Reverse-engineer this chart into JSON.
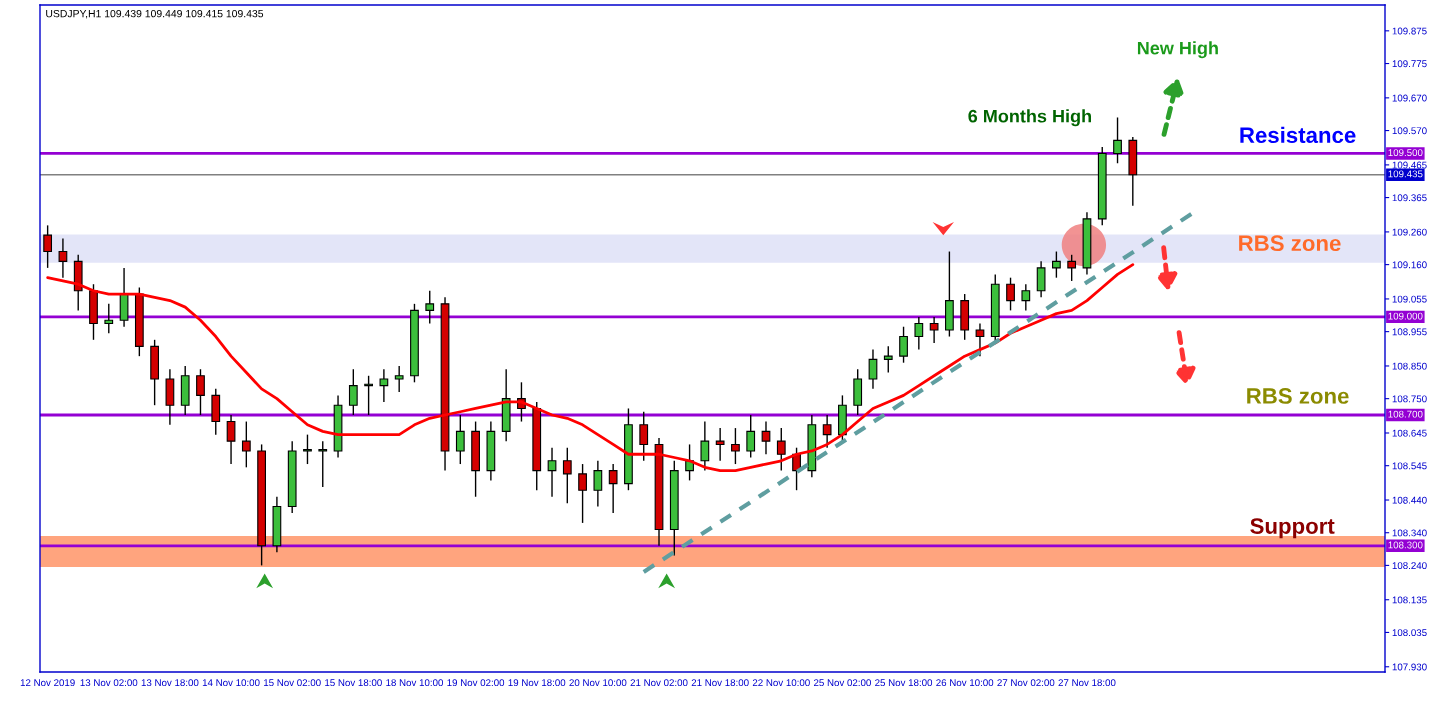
{
  "chart_data": {
    "type": "candlestick",
    "title": "USDJPY,H1 109.439 109.449 109.415 109.435",
    "categories": [
      "12 Nov 2019",
      null,
      null,
      null,
      "13 Nov 02:00",
      null,
      null,
      null,
      "13 Nov 18:00",
      null,
      null,
      null,
      "14 Nov 10:00",
      null,
      null,
      null,
      "15 Nov 02:00",
      null,
      null,
      null,
      "15 Nov 18:00",
      null,
      null,
      null,
      "18 Nov 10:00",
      null,
      null,
      null,
      "19 Nov 02:00",
      null,
      null,
      null,
      "19 Nov 18:00",
      null,
      null,
      null,
      "20 Nov 10:00",
      null,
      null,
      null,
      "21 Nov 02:00",
      null,
      null,
      null,
      "21 Nov 18:00",
      null,
      null,
      null,
      "22 Nov 10:00",
      null,
      null,
      null,
      "25 Nov 02:00",
      null,
      null,
      null,
      "25 Nov 18:00",
      null,
      null,
      null,
      "26 Nov 10:00",
      null,
      null,
      null,
      "27 Nov 02:00",
      null,
      null,
      null,
      "27 Nov 18:00",
      null,
      null,
      null,
      null,
      null,
      null,
      null,
      null,
      null,
      null,
      null,
      null,
      null,
      null,
      null,
      null,
      null,
      null,
      null
    ],
    "ohlc": [
      [
        109.25,
        109.28,
        109.15,
        109.2
      ],
      [
        109.2,
        109.24,
        109.12,
        109.17
      ],
      [
        109.17,
        109.19,
        109.02,
        109.08
      ],
      [
        109.08,
        109.1,
        108.93,
        108.98
      ],
      [
        108.98,
        109.04,
        108.95,
        108.99
      ],
      [
        108.99,
        109.15,
        108.97,
        109.07
      ],
      [
        109.07,
        109.09,
        108.88,
        108.91
      ],
      [
        108.91,
        108.93,
        108.73,
        108.81
      ],
      [
        108.81,
        108.84,
        108.67,
        108.73
      ],
      [
        108.73,
        108.85,
        108.7,
        108.82
      ],
      [
        108.82,
        108.84,
        108.7,
        108.76
      ],
      [
        108.76,
        108.78,
        108.64,
        108.68
      ],
      [
        108.68,
        108.7,
        108.55,
        108.62
      ],
      [
        108.62,
        108.68,
        108.54,
        108.59
      ],
      [
        108.59,
        108.61,
        108.24,
        108.3
      ],
      [
        108.3,
        108.45,
        108.28,
        108.42
      ],
      [
        108.42,
        108.62,
        108.4,
        108.59
      ],
      [
        108.59,
        108.64,
        108.55,
        108.59
      ],
      [
        108.59,
        108.62,
        108.48,
        108.59
      ],
      [
        108.59,
        108.76,
        108.57,
        108.73
      ],
      [
        108.73,
        108.84,
        108.7,
        108.79
      ],
      [
        108.79,
        108.82,
        108.7,
        108.79
      ],
      [
        108.79,
        108.84,
        108.74,
        108.81
      ],
      [
        108.81,
        108.85,
        108.77,
        108.82
      ],
      [
        108.82,
        109.04,
        108.8,
        109.02
      ],
      [
        109.02,
        109.08,
        108.98,
        109.04
      ],
      [
        109.04,
        109.06,
        108.53,
        108.59
      ],
      [
        108.59,
        108.7,
        108.55,
        108.65
      ],
      [
        108.65,
        108.68,
        108.45,
        108.53
      ],
      [
        108.53,
        108.68,
        108.5,
        108.65
      ],
      [
        108.65,
        108.84,
        108.62,
        108.75
      ],
      [
        108.75,
        108.8,
        108.68,
        108.72
      ],
      [
        108.72,
        108.74,
        108.47,
        108.53
      ],
      [
        108.53,
        108.6,
        108.45,
        108.56
      ],
      [
        108.56,
        108.6,
        108.43,
        108.52
      ],
      [
        108.52,
        108.55,
        108.37,
        108.47
      ],
      [
        108.47,
        108.56,
        108.42,
        108.53
      ],
      [
        108.53,
        108.55,
        108.4,
        108.49
      ],
      [
        108.49,
        108.72,
        108.47,
        108.67
      ],
      [
        108.67,
        108.71,
        108.56,
        108.61
      ],
      [
        108.61,
        108.63,
        108.3,
        108.35
      ],
      [
        108.35,
        108.56,
        108.27,
        108.53
      ],
      [
        108.53,
        108.61,
        108.5,
        108.56
      ],
      [
        108.56,
        108.68,
        108.53,
        108.62
      ],
      [
        108.62,
        108.66,
        108.56,
        108.61
      ],
      [
        108.61,
        108.66,
        108.55,
        108.59
      ],
      [
        108.59,
        108.7,
        108.57,
        108.65
      ],
      [
        108.65,
        108.68,
        108.58,
        108.62
      ],
      [
        108.62,
        108.66,
        108.53,
        108.58
      ],
      [
        108.58,
        108.6,
        108.47,
        108.53
      ],
      [
        108.53,
        108.7,
        108.51,
        108.67
      ],
      [
        108.67,
        108.7,
        108.6,
        108.64
      ],
      [
        108.64,
        108.76,
        108.62,
        108.73
      ],
      [
        108.73,
        108.84,
        108.7,
        108.81
      ],
      [
        108.81,
        108.9,
        108.78,
        108.87
      ],
      [
        108.87,
        108.91,
        108.83,
        108.88
      ],
      [
        108.88,
        108.97,
        108.86,
        108.94
      ],
      [
        108.94,
        109.0,
        108.9,
        108.98
      ],
      [
        108.98,
        109.0,
        108.92,
        108.96
      ],
      [
        108.96,
        109.2,
        108.94,
        109.05
      ],
      [
        109.05,
        109.07,
        108.93,
        108.96
      ],
      [
        108.96,
        108.98,
        108.88,
        108.94
      ],
      [
        108.94,
        109.13,
        108.92,
        109.1
      ],
      [
        109.1,
        109.12,
        109.02,
        109.05
      ],
      [
        109.05,
        109.1,
        109.02,
        109.08
      ],
      [
        109.08,
        109.17,
        109.06,
        109.15
      ],
      [
        109.15,
        109.2,
        109.12,
        109.17
      ],
      [
        109.17,
        109.19,
        109.11,
        109.15
      ],
      [
        109.15,
        109.32,
        109.13,
        109.3
      ],
      [
        109.3,
        109.52,
        109.28,
        109.5
      ],
      [
        109.5,
        109.61,
        109.47,
        109.54
      ],
      [
        109.54,
        109.55,
        109.34,
        109.435
      ],
      null,
      null,
      null,
      null,
      null,
      null,
      null,
      null,
      null,
      null,
      null,
      null,
      null,
      null,
      null,
      null
    ],
    "colors": [
      "#d40000",
      "#d40000",
      "#d40000",
      "#d40000",
      "#3cbf3c",
      "#3cbf3c",
      "#d40000",
      "#d40000",
      "#d40000",
      "#3cbf3c",
      "#d40000",
      "#d40000",
      "#d40000",
      "#d40000",
      "#d40000",
      "#3cbf3c",
      "#3cbf3c",
      "#3cbf3c",
      "#3cbf3c",
      "#3cbf3c",
      "#3cbf3c",
      "#3cbf3c",
      "#3cbf3c",
      "#3cbf3c",
      "#3cbf3c",
      "#3cbf3c",
      "#d40000",
      "#3cbf3c",
      "#d40000",
      "#3cbf3c",
      "#3cbf3c",
      "#d40000",
      "#d40000",
      "#3cbf3c",
      "#d40000",
      "#d40000",
      "#3cbf3c",
      "#d40000",
      "#3cbf3c",
      "#d40000",
      "#d40000",
      "#3cbf3c",
      "#3cbf3c",
      "#3cbf3c",
      "#d40000",
      "#d40000",
      "#3cbf3c",
      "#d40000",
      "#d40000",
      "#d40000",
      "#3cbf3c",
      "#d40000",
      "#3cbf3c",
      "#3cbf3c",
      "#3cbf3c",
      "#3cbf3c",
      "#3cbf3c",
      "#3cbf3c",
      "#d40000",
      "#3cbf3c",
      "#d40000",
      "#d40000",
      "#3cbf3c",
      "#d40000",
      "#3cbf3c",
      "#3cbf3c",
      "#3cbf3c",
      "#d40000",
      "#3cbf3c",
      "#3cbf3c",
      "#3cbf3c",
      "#d40000",
      null,
      null,
      null,
      null,
      null,
      null,
      null,
      null,
      null,
      null,
      null,
      null,
      null,
      null,
      null,
      null
    ],
    "series": [
      {
        "type": "line",
        "color": "#ff0000",
        "line_style": "solid",
        "values": [
          109.12,
          109.11,
          109.1,
          109.08,
          109.07,
          109.07,
          109.07,
          109.06,
          109.05,
          109.03,
          108.99,
          108.94,
          108.88,
          108.83,
          108.78,
          108.75,
          108.71,
          108.67,
          108.65,
          108.64,
          108.64,
          108.64,
          108.64,
          108.64,
          108.67,
          108.69,
          108.7,
          108.71,
          108.72,
          108.73,
          108.74,
          108.74,
          108.72,
          108.7,
          108.69,
          108.67,
          108.64,
          108.61,
          108.58,
          108.58,
          108.58,
          108.57,
          108.56,
          108.54,
          108.53,
          108.53,
          108.54,
          108.55,
          108.56,
          108.58,
          108.59,
          108.61,
          108.64,
          108.68,
          108.72,
          108.74,
          108.76,
          108.79,
          108.82,
          108.85,
          108.88,
          108.9,
          108.92,
          108.95,
          108.97,
          108.99,
          109.01,
          109.02,
          109.05,
          109.09,
          109.13,
          109.16,
          null,
          null,
          null,
          null,
          null,
          null,
          null,
          null,
          null,
          null,
          null,
          null,
          null,
          null,
          null,
          null
        ]
      },
      {
        "type": "line",
        "color": "#5f9ea0",
        "line_style": "dashed",
        "values": [
          null,
          null,
          null,
          null,
          null,
          null,
          null,
          null,
          null,
          null,
          null,
          null,
          null,
          null,
          null,
          null,
          null,
          null,
          null,
          null,
          null,
          null,
          null,
          null,
          null,
          null,
          null,
          null,
          null,
          null,
          null,
          null,
          null,
          null,
          null,
          null,
          null,
          null,
          null,
          108.22,
          null,
          null,
          null,
          null,
          null,
          null,
          null,
          null,
          null,
          null,
          null,
          null,
          null,
          null,
          null,
          null,
          null,
          null,
          null,
          null,
          null,
          null,
          null,
          null,
          null,
          null,
          null,
          null,
          null,
          null,
          null,
          null,
          null,
          null,
          null,
          109.32,
          null,
          null,
          null,
          null,
          null,
          null,
          null,
          null,
          null,
          null,
          null,
          null
        ]
      }
    ],
    "ylim": [
      107.914,
      109.954
    ],
    "yticks": [
      {
        "value": 109.875,
        "label": "109.875"
      },
      {
        "value": 109.775,
        "label": "109.775"
      },
      {
        "value": 109.67,
        "label": "109.670"
      },
      {
        "value": 109.57,
        "label": "109.570"
      },
      {
        "value": 109.465,
        "label": "109.465"
      },
      {
        "value": 109.365,
        "label": "109.365"
      },
      {
        "value": 109.26,
        "label": "109.260"
      },
      {
        "value": 109.16,
        "label": "109.160"
      },
      {
        "value": 109.055,
        "label": "109.055"
      },
      {
        "value": 108.955,
        "label": "108.955"
      },
      {
        "value": 108.85,
        "label": "108.850"
      },
      {
        "value": 108.75,
        "label": "108.750"
      },
      {
        "value": 108.645,
        "label": "108.645"
      },
      {
        "value": 108.545,
        "label": "108.545"
      },
      {
        "value": 108.44,
        "label": "108.440"
      },
      {
        "value": 108.34,
        "label": "108.340"
      },
      {
        "value": 108.24,
        "label": "108.240"
      },
      {
        "value": 108.135,
        "label": "108.135"
      },
      {
        "value": 108.035,
        "label": "108.035"
      },
      {
        "value": 107.93,
        "label": "107.930"
      }
    ],
    "ref_lines": [
      {
        "axis": "y",
        "value": 109.5,
        "label": "109.500",
        "color": "#9400d3"
      },
      {
        "axis": "y",
        "value": 109.435,
        "label": "109.435",
        "color": "#808080"
      },
      {
        "axis": "y",
        "value": 109.0,
        "label": "109.000",
        "color": "#9400d3"
      },
      {
        "axis": "y",
        "value": 108.7,
        "label": "108.700",
        "color": "#9400d3"
      },
      {
        "axis": "y",
        "value": 108.3,
        "label": "108.300",
        "color": "#9400d3"
      }
    ],
    "bands": [
      {
        "axis": "y",
        "from": 109.166,
        "to": 109.252,
        "color": "#e3e5f8"
      },
      {
        "axis": "y",
        "from": 108.235,
        "to": 108.33,
        "color": "#ffa47e"
      }
    ],
    "annotations": [
      "6 Months High",
      "New High",
      "Resistance",
      "RBS zone",
      "RBS zone",
      "Support"
    ],
    "grid": false
  }
}
